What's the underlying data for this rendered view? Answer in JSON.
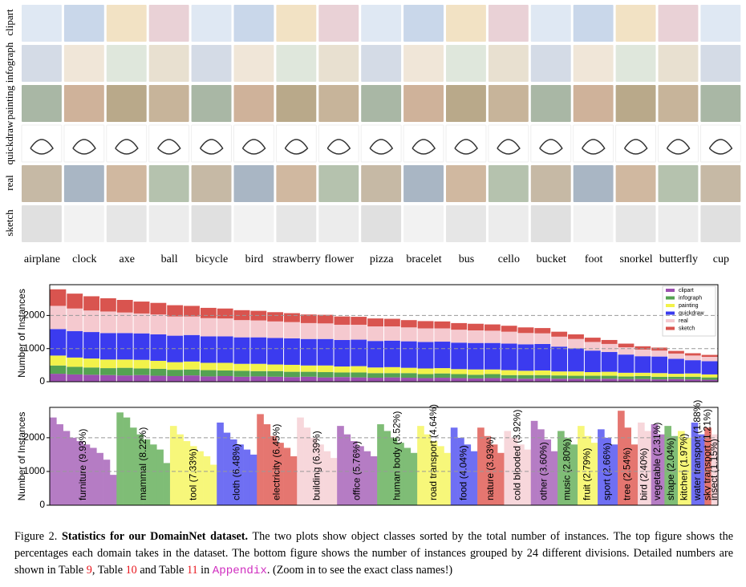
{
  "grid": {
    "domains": [
      "clipart",
      "infograph",
      "painting",
      "quickdraw",
      "real",
      "sketch"
    ],
    "classes": [
      "airplane",
      "clock",
      "axe",
      "ball",
      "bicycle",
      "bird",
      "strawberry",
      "flower",
      "pizza",
      "bracelet",
      "bus",
      "cello",
      "bucket",
      "foot",
      "snorkel",
      "butterfly",
      "cup"
    ]
  },
  "chart_data": [
    {
      "type": "stacked_bar",
      "ylabel": "Number of Instances",
      "ylim": [
        0,
        2930
      ],
      "yticks": [
        0,
        1000,
        2000
      ],
      "grid": true,
      "legend": "upper right",
      "series": [
        {
          "name": "clipart",
          "color": "#9b4fb0",
          "values": [
            240,
            220,
            210,
            200,
            190,
            200,
            180,
            170,
            190,
            160,
            170,
            150,
            160,
            150,
            140,
            150,
            130,
            140,
            130,
            120,
            130,
            120,
            110,
            120,
            110,
            100,
            110,
            100,
            90,
            100,
            90,
            90,
            80,
            90,
            80,
            80,
            70,
            80,
            70,
            60
          ]
        },
        {
          "name": "infograph",
          "color": "#55a252",
          "values": [
            250,
            230,
            220,
            210,
            230,
            200,
            210,
            190,
            180,
            190,
            170,
            180,
            160,
            170,
            160,
            150,
            160,
            140,
            150,
            140,
            130,
            140,
            120,
            130,
            120,
            110,
            120,
            100,
            110,
            100,
            100,
            90,
            100,
            90,
            80,
            90,
            80,
            70,
            80,
            70
          ]
        },
        {
          "name": "painting",
          "color": "#f2f24a",
          "values": [
            300,
            280,
            270,
            260,
            250,
            260,
            240,
            230,
            240,
            220,
            230,
            210,
            220,
            200,
            210,
            190,
            200,
            180,
            190,
            170,
            180,
            160,
            170,
            160,
            150,
            160,
            140,
            150,
            130,
            140,
            120,
            130,
            110,
            120,
            110,
            100,
            110,
            90,
            100,
            90
          ]
        },
        {
          "name": "quickdraw",
          "color": "#3b3bef",
          "values": [
            800,
            800,
            800,
            800,
            800,
            800,
            800,
            800,
            800,
            800,
            800,
            800,
            800,
            800,
            800,
            800,
            800,
            800,
            800,
            800,
            800,
            800,
            800,
            800,
            800,
            800,
            800,
            800,
            800,
            800,
            750,
            700,
            650,
            600,
            550,
            500,
            500,
            450,
            400,
            400
          ]
        },
        {
          "name": "real",
          "color": "#f5c9cf",
          "values": [
            700,
            680,
            650,
            650,
            620,
            600,
            600,
            580,
            560,
            550,
            540,
            520,
            510,
            500,
            490,
            480,
            470,
            460,
            450,
            440,
            430,
            420,
            410,
            400,
            390,
            380,
            370,
            360,
            340,
            320,
            300,
            280,
            260,
            240,
            220,
            200,
            180,
            160,
            140,
            130
          ]
        },
        {
          "name": "sketch",
          "color": "#d9544f",
          "values": [
            500,
            450,
            430,
            400,
            380,
            360,
            350,
            340,
            320,
            310,
            300,
            300,
            290,
            280,
            270,
            260,
            260,
            250,
            240,
            240,
            230,
            220,
            220,
            210,
            200,
            200,
            190,
            180,
            170,
            160,
            150,
            140,
            130,
            120,
            110,
            100,
            90,
            80,
            70,
            60
          ]
        }
      ]
    },
    {
      "type": "grouped_bar",
      "ylabel": "Number of Instances",
      "ylim": [
        0,
        2900
      ],
      "yticks": [
        0,
        1000,
        2000
      ],
      "grid": true,
      "series": [
        {
          "name": "furniture (9.93%)",
          "color": "#b57cc4",
          "values": [
            2600,
            2400,
            2200,
            2000,
            1900,
            1800,
            1700,
            1550,
            1350,
            900
          ]
        },
        {
          "name": "mammal (8.22%)",
          "color": "#7fbd76",
          "values": [
            2750,
            2600,
            2300,
            2100,
            1950,
            1800,
            1650,
            1250
          ]
        },
        {
          "name": "tool (7.33%)",
          "color": "#f7f77a",
          "values": [
            2350,
            2100,
            1900,
            1750,
            1600,
            1450,
            1200
          ]
        },
        {
          "name": "cloth (6.48%)",
          "color": "#6f6ff3",
          "values": [
            2450,
            2150,
            1950,
            1800,
            1650,
            1500
          ]
        },
        {
          "name": "electricity (6.45%)",
          "color": "#e57670",
          "values": [
            2700,
            2400,
            2050,
            1850,
            1700,
            1450
          ]
        },
        {
          "name": "building (6.39%)",
          "color": "#f7d7db",
          "values": [
            2600,
            2300,
            2000,
            1800,
            1600,
            1400
          ]
        },
        {
          "name": "office (5.76%)",
          "color": "#b57cc4",
          "values": [
            2350,
            2100,
            1900,
            1750,
            1600,
            1450
          ]
        },
        {
          "name": "human body (5.52%)",
          "color": "#7fbd76",
          "values": [
            2400,
            2200,
            2000,
            1850,
            1700,
            1550
          ]
        },
        {
          "name": "road transport (4.64%)",
          "color": "#f7f77a",
          "values": [
            2350,
            2100,
            1900,
            1750,
            1550
          ]
        },
        {
          "name": "food (4.04%)",
          "color": "#6f6ff3",
          "values": [
            2300,
            2000,
            1800,
            1600
          ]
        },
        {
          "name": "nature (3.93%)",
          "color": "#e57670",
          "values": [
            2300,
            2050,
            1800,
            1550
          ]
        },
        {
          "name": "cold blooded (3.92%)",
          "color": "#f7d7db",
          "values": [
            2200,
            2000,
            1800,
            1650
          ]
        },
        {
          "name": "other (3.60%)",
          "color": "#b57cc4",
          "values": [
            2500,
            2250,
            1950,
            1600
          ]
        },
        {
          "name": "music (2.80%)",
          "color": "#7fbd76",
          "values": [
            2200,
            2000,
            1800
          ]
        },
        {
          "name": "fruit (2.79%)",
          "color": "#f7f77a",
          "values": [
            2350,
            2050,
            1850
          ]
        },
        {
          "name": "sport (2.66%)",
          "color": "#6f6ff3",
          "values": [
            2250,
            2000,
            1800
          ]
        },
        {
          "name": "tree (2.54%)",
          "color": "#e57670",
          "values": [
            2800,
            2300,
            1800
          ]
        },
        {
          "name": "bird (2.40%)",
          "color": "#f7d7db",
          "values": [
            2450,
            2200
          ]
        },
        {
          "name": "vegetable (2.31%)",
          "color": "#b57cc4",
          "values": [
            2400,
            2100
          ]
        },
        {
          "name": "shape (2.04%)",
          "color": "#7fbd76",
          "values": [
            2350,
            2050
          ]
        },
        {
          "name": "kitchen (1.97%)",
          "color": "#f7f77a",
          "values": [
            2200,
            2000
          ]
        },
        {
          "name": "water transport (1.88%)",
          "color": "#6f6ff3",
          "values": [
            2450,
            2100
          ]
        },
        {
          "name": "sky transport (1.21%)",
          "color": "#e57670",
          "values": [
            2300
          ]
        },
        {
          "name": "insect (1.15%)",
          "color": "#f7d7db",
          "values": [
            2100
          ]
        }
      ]
    }
  ],
  "caption": {
    "label": "Figure 2.",
    "bold": "Statistics for our DomainNet dataset.",
    "text1": "The two plots show object classes sorted by the total number of instances. The top figure shows the percentages each domain takes in the dataset. The bottom figure shows the number of instances grouped by 24 different divisions. Detailed numbers are shown in Table ",
    "ref1": "9",
    "text2": ", Table ",
    "ref2": "10",
    "text3": " and Table ",
    "ref3": "11",
    "text4": " in ",
    "appendix": "Appendix",
    "text5": ". (Zoom in to see the exact class names!)"
  }
}
